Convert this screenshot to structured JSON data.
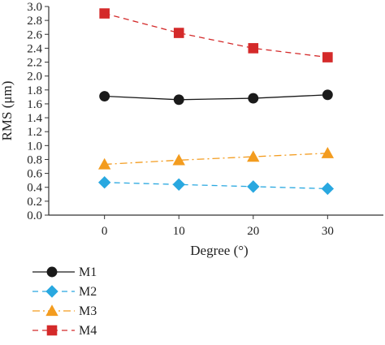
{
  "chart_data": {
    "type": "line",
    "x": [
      0,
      10,
      20,
      30
    ],
    "xlabel": "Degree (°)",
    "ylabel": "RMS (μm)",
    "xlim": [
      -7.5,
      37.5
    ],
    "ylim": [
      0,
      3.0
    ],
    "xticks": [
      "0",
      "10",
      "20",
      "30"
    ],
    "yticks": [
      "0.0",
      "0.2",
      "0.4",
      "0.6",
      "0.8",
      "1.0",
      "1.2",
      "1.4",
      "1.6",
      "1.8",
      "2.0",
      "2.2",
      "2.4",
      "2.6",
      "2.8",
      "3.0"
    ],
    "grid": false,
    "legend_position": "bottom-left, below plot",
    "series": [
      {
        "name": "M1",
        "values": [
          1.71,
          1.66,
          1.68,
          1.73
        ],
        "color": "#1a1a1a",
        "marker": "circle",
        "line": "solid"
      },
      {
        "name": "M2",
        "values": [
          0.47,
          0.44,
          0.41,
          0.38
        ],
        "color": "#29a8e0",
        "marker": "diamond",
        "line": "dashed"
      },
      {
        "name": "M3",
        "values": [
          0.73,
          0.79,
          0.84,
          0.89
        ],
        "color": "#f39c1f",
        "marker": "triangle",
        "line": "dashdot"
      },
      {
        "name": "M4",
        "values": [
          2.9,
          2.62,
          2.4,
          2.27
        ],
        "color": "#d42a2a",
        "marker": "square",
        "line": "dashed"
      }
    ]
  }
}
